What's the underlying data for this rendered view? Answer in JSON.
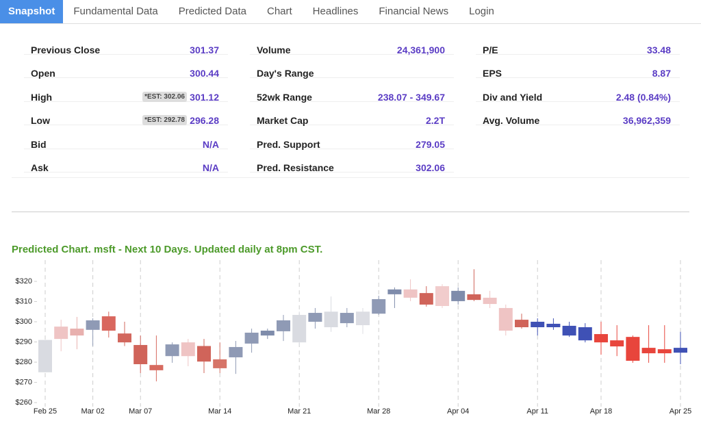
{
  "nav": {
    "tabs": [
      "Snapshot",
      "Fundamental Data",
      "Predicted Data",
      "Chart",
      "Headlines",
      "Financial News",
      "Login"
    ],
    "active": 0
  },
  "stats": [
    [
      {
        "label": "Previous Close",
        "value": "301.37"
      },
      {
        "label": "Open",
        "value": "300.44"
      },
      {
        "label": "High",
        "value": "301.12",
        "est": "*EST: 302.06"
      },
      {
        "label": "Low",
        "value": "296.28",
        "est": "*EST: 292.78"
      },
      {
        "label": "Bid",
        "value": "N/A"
      },
      {
        "label": "Ask",
        "value": "N/A"
      }
    ],
    [
      {
        "label": "Volume",
        "value": "24,361,900"
      },
      {
        "label": "Day's Range"
      },
      {
        "label": "52wk Range",
        "value": "238.07 - 349.67"
      },
      {
        "label": "Market Cap",
        "value": "2.2T"
      },
      {
        "label": "Pred. Support",
        "value": "279.05"
      },
      {
        "label": "Pred. Resistance",
        "value": "302.06"
      }
    ],
    [
      {
        "label": "P/E",
        "value": "33.48"
      },
      {
        "label": "EPS",
        "value": "8.87"
      },
      {
        "label": "Div and Yield",
        "value": "2.48 (0.84%)"
      },
      {
        "label": "Avg. Volume",
        "value": "36,962,359"
      }
    ]
  ],
  "chart_data": {
    "type": "candlestick",
    "title": "Predicted Chart. msft - Next 10 Days. Updated daily at 8pm CST.",
    "categories": [
      "Feb 25",
      null,
      null,
      "Mar 02",
      null,
      null,
      "Mar 07",
      null,
      null,
      null,
      null,
      "Mar 14",
      null,
      null,
      null,
      null,
      "Mar 21",
      null,
      null,
      null,
      null,
      "Mar 28",
      null,
      null,
      null,
      null,
      "Apr 04",
      null,
      null,
      null,
      null,
      "Apr 11",
      null,
      null,
      null,
      "Apr 18",
      null,
      null,
      null,
      null,
      "Apr 25"
    ],
    "open": [
      291,
      297.6,
      296.6,
      296,
      302.7,
      294.2,
      288.5,
      278.6,
      283,
      289.8,
      288,
      281.4,
      282.4,
      289.2,
      293.2,
      295.3,
      289.8,
      300,
      297.3,
      299.3,
      298.3,
      304,
      313.6,
      316,
      314.2,
      317.6,
      310.2,
      313.6,
      311.9,
      306.8,
      301,
      297.3,
      299,
      298,
      297.3,
      293.9,
      290.8,
      292.5,
      287.1,
      286.4,
      284.7
    ],
    "high": [
      291,
      301,
      302.4,
      301.7,
      305,
      300,
      293.2,
      293.2,
      289.8,
      291.5,
      291.5,
      289.8,
      290.5,
      296.6,
      296.6,
      303.4,
      305,
      306.8,
      312.5,
      306.8,
      306.8,
      312.9,
      317,
      321,
      317.6,
      318.6,
      317,
      326,
      315.3,
      308.5,
      304,
      301.7,
      301.7,
      300,
      299.3,
      300,
      298.3,
      293.2,
      298.3,
      298.3,
      295
    ],
    "low": [
      275,
      285.4,
      286.4,
      288,
      292.2,
      288,
      274.6,
      270.5,
      279.7,
      278,
      274.6,
      274.6,
      274.2,
      284.7,
      291.5,
      290.5,
      288.1,
      296.6,
      295,
      297.3,
      294,
      303.4,
      306.8,
      310.2,
      307.5,
      306.8,
      308.5,
      310.2,
      306.8,
      293.2,
      296.6,
      293.2,
      296,
      292.5,
      289.8,
      283.7,
      283,
      279.7,
      279.7,
      279.7,
      279
    ],
    "close": [
      275,
      291.5,
      293.2,
      300.7,
      295.6,
      289.8,
      279,
      276,
      288.8,
      283,
      280.3,
      277,
      287.5,
      294.6,
      295.6,
      300.7,
      303.4,
      304.4,
      305,
      304.4,
      305,
      311.2,
      316,
      311.9,
      308.5,
      307.8,
      315.3,
      310.8,
      308.8,
      295.6,
      297.3,
      300,
      297.3,
      293.2,
      290.8,
      289.8,
      287.8,
      280.7,
      284.4,
      284.4,
      287.1
    ],
    "colors": [
      "#d9dbe1",
      "#efc4c4",
      "#e8b0ae",
      "#8f9ab5",
      "#d9675e",
      "#d2675d",
      "#d0645a",
      "#d76a5f",
      "#8f9ab5",
      "#efc4c4",
      "#d0645a",
      "#d67468",
      "#8f9ab5",
      "#8f9ab5",
      "#7f8cab",
      "#8f9ab5",
      "#d9dbe1",
      "#8f9ab5",
      "#d9dbe1",
      "#8f9ab5",
      "#dcdde3",
      "#8f9ab5",
      "#7f8cab",
      "#efc4c4",
      "#d0645a",
      "#f1cccc",
      "#7f8cab",
      "#d0645a",
      "#efc4c4",
      "#efc4c4",
      "#d0645a",
      "#3f51b5",
      "#3f51b5",
      "#3f51b5",
      "#3f51b5",
      "#e8453c",
      "#e8453c",
      "#e8453c",
      "#e8453c",
      "#e8453c",
      "#3f51b5"
    ],
    "ylim": [
      258,
      330.5
    ],
    "yticks": [
      {
        "value": 260,
        "label": "$260"
      },
      {
        "value": 270,
        "label": "$270"
      },
      {
        "value": 280,
        "label": "$280"
      },
      {
        "value": 290,
        "label": "$290"
      },
      {
        "value": 300,
        "label": "$300"
      },
      {
        "value": 310,
        "label": "$310"
      },
      {
        "value": 320,
        "label": "$320"
      }
    ],
    "title_color": "#4c9a2a"
  }
}
